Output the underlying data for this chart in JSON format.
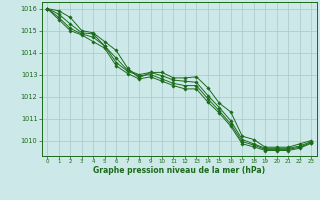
{
  "xlabel": "Graphe pression niveau de la mer (hPa)",
  "xlim": [
    -0.5,
    23.5
  ],
  "ylim": [
    1009.3,
    1016.3
  ],
  "yticks": [
    1010,
    1011,
    1012,
    1013,
    1014,
    1015,
    1016
  ],
  "xticks": [
    0,
    1,
    2,
    3,
    4,
    5,
    6,
    7,
    8,
    9,
    10,
    11,
    12,
    13,
    14,
    15,
    16,
    17,
    18,
    19,
    20,
    21,
    22,
    23
  ],
  "bg_color": "#cde8e8",
  "grid_color": "#a8c8c8",
  "line_color": "#1a6b1a",
  "series": [
    [
      1016.0,
      1015.9,
      1015.6,
      1015.0,
      1014.9,
      1014.5,
      1014.1,
      1013.3,
      1012.85,
      1013.1,
      1013.1,
      1012.85,
      1012.85,
      1012.9,
      1012.4,
      1011.7,
      1011.3,
      1010.2,
      1010.05,
      1009.7,
      1009.7,
      1009.7,
      1009.85,
      1010.0
    ],
    [
      1016.0,
      1015.75,
      1015.3,
      1014.9,
      1014.85,
      1014.3,
      1013.75,
      1013.2,
      1013.0,
      1013.1,
      1012.95,
      1012.75,
      1012.7,
      1012.65,
      1012.05,
      1011.5,
      1010.9,
      1010.05,
      1009.85,
      1009.65,
      1009.65,
      1009.65,
      1009.75,
      1009.95
    ],
    [
      1016.0,
      1015.6,
      1015.1,
      1014.85,
      1014.7,
      1014.3,
      1013.55,
      1013.15,
      1012.95,
      1013.0,
      1012.8,
      1012.6,
      1012.5,
      1012.5,
      1011.9,
      1011.35,
      1010.75,
      1009.95,
      1009.8,
      1009.6,
      1009.6,
      1009.6,
      1009.7,
      1009.9
    ],
    [
      1016.0,
      1015.5,
      1015.0,
      1014.8,
      1014.5,
      1014.2,
      1013.4,
      1013.05,
      1012.8,
      1012.9,
      1012.7,
      1012.5,
      1012.35,
      1012.35,
      1011.75,
      1011.25,
      1010.65,
      1009.85,
      1009.72,
      1009.55,
      1009.55,
      1009.55,
      1009.65,
      1009.88
    ]
  ]
}
